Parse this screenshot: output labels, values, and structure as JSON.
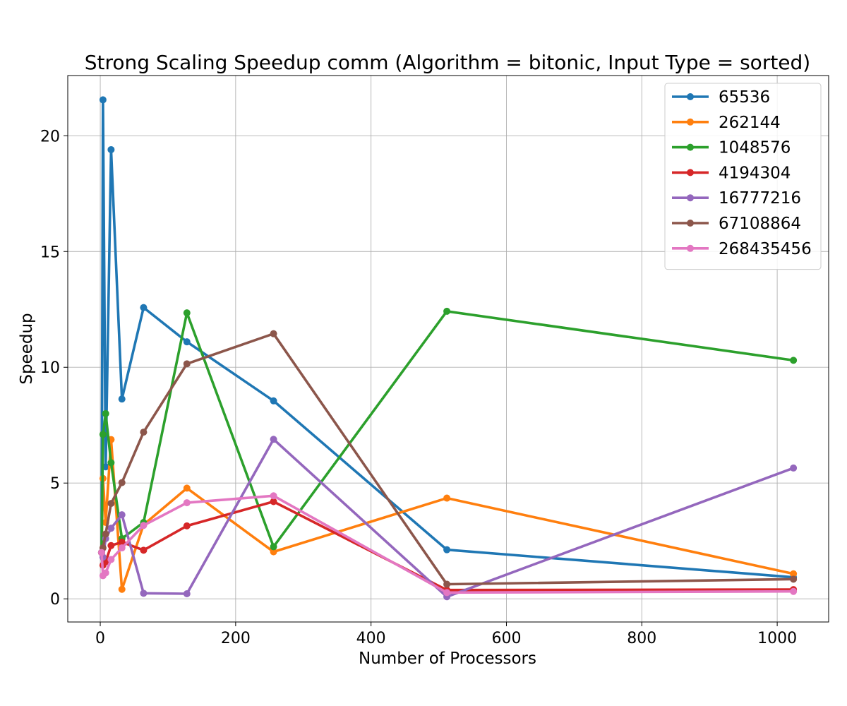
{
  "chart_data": {
    "type": "line",
    "title": "Strong Scaling Speedup comm (Algorithm = bitonic, Input Type = sorted)",
    "xlabel": "Number of Processors",
    "ylabel": "Speedup",
    "xlim": [
      -48,
      1076
    ],
    "ylim": [
      -1.0,
      22.6
    ],
    "xticks": [
      0,
      200,
      400,
      600,
      800,
      1000
    ],
    "yticks": [
      0,
      5,
      10,
      15,
      20
    ],
    "grid": true,
    "legend_position": "top-right",
    "x": [
      2,
      4,
      8,
      16,
      32,
      64,
      128,
      256,
      512,
      1024
    ],
    "series": [
      {
        "name": "65536",
        "color": "#1f77b4",
        "values": [
          2.0,
          21.55,
          5.7,
          19.4,
          8.63,
          12.58,
          11.1,
          8.55,
          2.12,
          0.93
        ]
      },
      {
        "name": "262144",
        "color": "#ff7f0e",
        "values": [
          2.0,
          5.2,
          3.3,
          6.88,
          0.41,
          3.2,
          4.78,
          2.03,
          4.35,
          1.08
        ]
      },
      {
        "name": "1048576",
        "color": "#2ca02c",
        "values": [
          2.0,
          7.1,
          8.0,
          5.88,
          2.6,
          3.3,
          12.35,
          2.25,
          12.42,
          10.3
        ]
      },
      {
        "name": "4194304",
        "color": "#d62728",
        "values": [
          2.0,
          1.45,
          1.6,
          2.3,
          2.45,
          2.1,
          3.15,
          4.2,
          0.38,
          0.4
        ]
      },
      {
        "name": "16777216",
        "color": "#9467bd",
        "values": [
          2.0,
          1.8,
          2.6,
          3.05,
          3.63,
          0.24,
          0.22,
          6.89,
          0.09,
          5.65
        ]
      },
      {
        "name": "67108864",
        "color": "#8c564b",
        "values": [
          2.0,
          2.2,
          2.8,
          4.12,
          5.02,
          7.2,
          10.15,
          11.45,
          0.63,
          0.85
        ]
      },
      {
        "name": "268435456",
        "color": "#e377c2",
        "values": [
          2.0,
          1.0,
          1.12,
          1.7,
          2.2,
          3.17,
          4.15,
          4.45,
          0.27,
          0.32
        ]
      }
    ]
  }
}
